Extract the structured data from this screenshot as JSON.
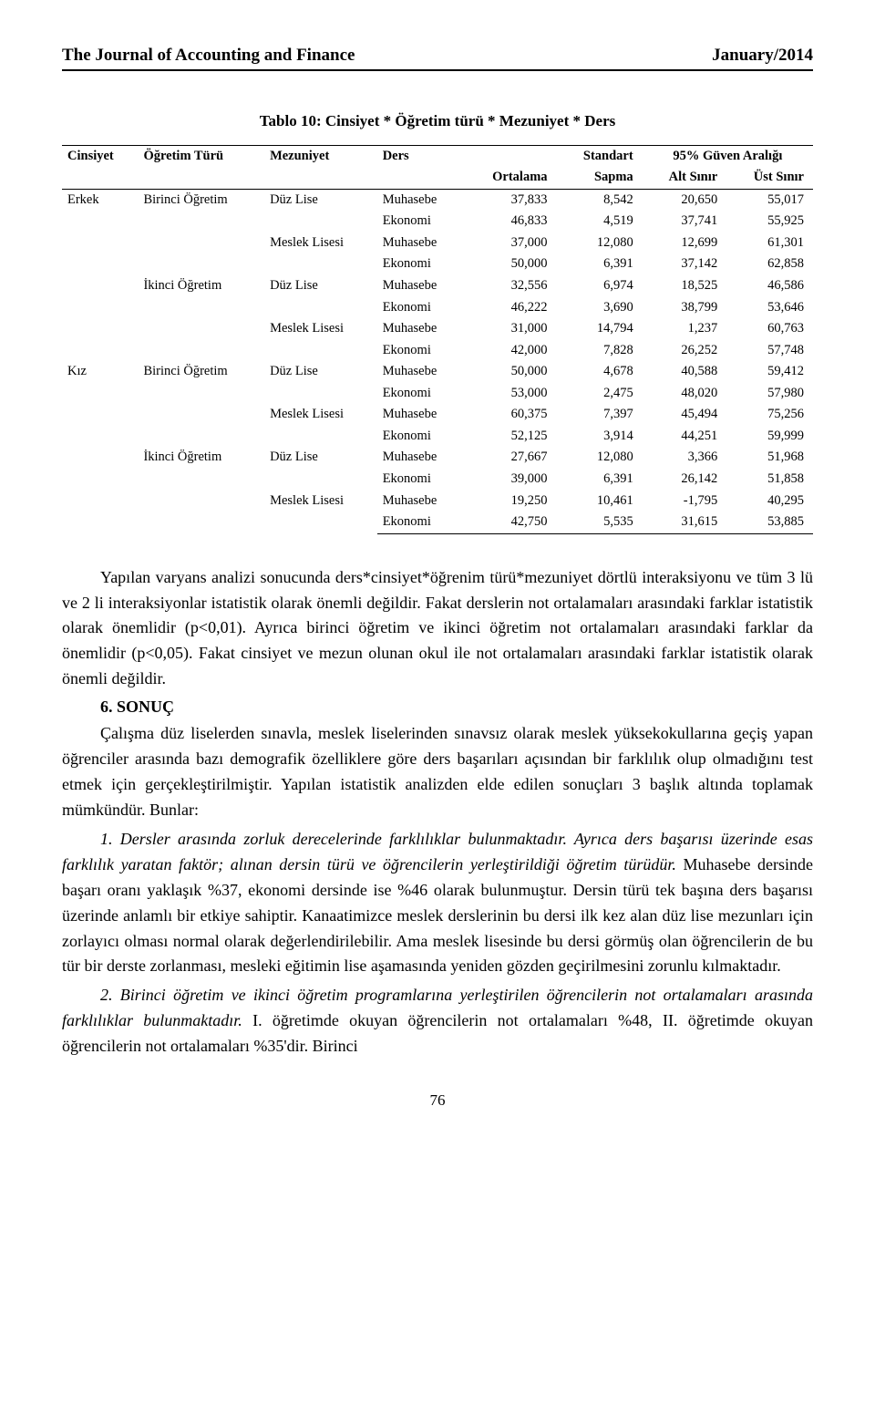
{
  "header": {
    "journal": "The Journal of Accounting and Finance",
    "issue": "January/2014"
  },
  "table": {
    "title": "Tablo 10: Cinsiyet * Öğretim türü * Mezuniyet * Ders",
    "columns": {
      "cinsiyet": "Cinsiyet",
      "ogretim_turu": "Öğretim Türü",
      "mezuniyet": "Mezuniyet",
      "ders": "Ders",
      "ortalama": "Ortalama",
      "standart_sapma_1": "Standart",
      "standart_sapma_2": "Sapma",
      "ci_group": "95% Güven Aralığı",
      "alt_sinir": "Alt Sınır",
      "ust_sinir": "Üst Sınır"
    },
    "groups": [
      {
        "cinsiyet": "Erkek",
        "ogretim": [
          {
            "label": "Birinci Öğretim",
            "mez": [
              {
                "label": "Düz Lise",
                "rows": [
                  {
                    "ders": "Muhasebe",
                    "ort": "37,833",
                    "ss": "8,542",
                    "alt": "20,650",
                    "ust": "55,017"
                  },
                  {
                    "ders": "Ekonomi",
                    "ort": "46,833",
                    "ss": "4,519",
                    "alt": "37,741",
                    "ust": "55,925"
                  }
                ]
              },
              {
                "label": "Meslek Lisesi",
                "rows": [
                  {
                    "ders": "Muhasebe",
                    "ort": "37,000",
                    "ss": "12,080",
                    "alt": "12,699",
                    "ust": "61,301"
                  },
                  {
                    "ders": "Ekonomi",
                    "ort": "50,000",
                    "ss": "6,391",
                    "alt": "37,142",
                    "ust": "62,858"
                  }
                ]
              }
            ]
          },
          {
            "label": "İkinci Öğretim",
            "mez": [
              {
                "label": "Düz Lise",
                "rows": [
                  {
                    "ders": "Muhasebe",
                    "ort": "32,556",
                    "ss": "6,974",
                    "alt": "18,525",
                    "ust": "46,586"
                  },
                  {
                    "ders": "Ekonomi",
                    "ort": "46,222",
                    "ss": "3,690",
                    "alt": "38,799",
                    "ust": "53,646"
                  }
                ]
              },
              {
                "label": "Meslek Lisesi",
                "rows": [
                  {
                    "ders": "Muhasebe",
                    "ort": "31,000",
                    "ss": "14,794",
                    "alt": "1,237",
                    "ust": "60,763"
                  },
                  {
                    "ders": "Ekonomi",
                    "ort": "42,000",
                    "ss": "7,828",
                    "alt": "26,252",
                    "ust": "57,748"
                  }
                ]
              }
            ]
          }
        ]
      },
      {
        "cinsiyet": "Kız",
        "ogretim": [
          {
            "label": "Birinci Öğretim",
            "mez": [
              {
                "label": "Düz Lise",
                "rows": [
                  {
                    "ders": "Muhasebe",
                    "ort": "50,000",
                    "ss": "4,678",
                    "alt": "40,588",
                    "ust": "59,412"
                  },
                  {
                    "ders": "Ekonomi",
                    "ort": "53,000",
                    "ss": "2,475",
                    "alt": "48,020",
                    "ust": "57,980"
                  }
                ]
              },
              {
                "label": "Meslek Lisesi",
                "rows": [
                  {
                    "ders": "Muhasebe",
                    "ort": "60,375",
                    "ss": "7,397",
                    "alt": "45,494",
                    "ust": "75,256"
                  },
                  {
                    "ders": "Ekonomi",
                    "ort": "52,125",
                    "ss": "3,914",
                    "alt": "44,251",
                    "ust": "59,999"
                  }
                ]
              }
            ]
          },
          {
            "label": "İkinci Öğretim",
            "mez": [
              {
                "label": "Düz Lise",
                "rows": [
                  {
                    "ders": "Muhasebe",
                    "ort": "27,667",
                    "ss": "12,080",
                    "alt": "3,366",
                    "ust": "51,968"
                  },
                  {
                    "ders": "Ekonomi",
                    "ort": "39,000",
                    "ss": "6,391",
                    "alt": "26,142",
                    "ust": "51,858"
                  }
                ]
              },
              {
                "label": "Meslek Lisesi",
                "rows": [
                  {
                    "ders": "Muhasebe",
                    "ort": "19,250",
                    "ss": "10,461",
                    "alt": "-1,795",
                    "ust": "40,295"
                  },
                  {
                    "ders": "Ekonomi",
                    "ort": "42,750",
                    "ss": "5,535",
                    "alt": "31,615",
                    "ust": "53,885"
                  }
                ]
              }
            ]
          }
        ]
      }
    ]
  },
  "paragraphs": {
    "p1": "Yapılan varyans analizi sonucunda ders*cinsiyet*öğrenim türü*mezuniyet dörtlü interaksiyonu ve tüm 3 lü ve 2 li interaksiyonlar istatistik olarak önemli değildir. Fakat derslerin not ortalamaları arasındaki farklar istatistik olarak önemlidir (p<0,01). Ayrıca birinci öğretim ve ikinci öğretim not ortalamaları arasındaki farklar da önemlidir (p<0,05). Fakat cinsiyet ve mezun olunan okul ile not ortalamaları arasındaki farklar istatistik olarak önemli değildir.",
    "section_head": "6. SONUÇ",
    "p2": "Çalışma düz liselerden sınavla, meslek liselerinden sınavsız olarak meslek yüksekokullarına geçiş yapan öğrenciler arasında bazı demografik özelliklere göre ders başarıları açısından bir farklılık olup olmadığını test etmek için gerçekleştirilmiştir. Yapılan istatistik analizden elde edilen sonuçları 3 başlık altında toplamak mümkündür. Bunlar:",
    "p3_italic": "1. Dersler arasında zorluk derecelerinde farklılıklar bulunmaktadır. Ayrıca ders başarısı üzerinde esas farklılık yaratan faktör; alınan dersin türü ve öğrencilerin yerleştirildiği öğretim türüdür.",
    "p3_rest": " Muhasebe dersinde başarı oranı yaklaşık %37, ekonomi dersinde ise %46 olarak bulunmuştur. Dersin türü tek başına ders başarısı üzerinde anlamlı bir etkiye sahiptir. Kanaatimizce meslek derslerinin bu dersi ilk kez alan düz lise mezunları için zorlayıcı olması normal olarak değerlendirilebilir. Ama meslek lisesinde bu dersi görmüş olan öğrencilerin de bu tür bir derste zorlanması, mesleki eğitimin lise aşamasında yeniden gözden geçirilmesini zorunlu kılmaktadır.",
    "p4_italic": "2. Birinci öğretim ve ikinci öğretim programlarına yerleştirilen öğrencilerin not ortalamaları arasında farklılıklar bulunmaktadır.",
    "p4_rest": " I. öğretimde okuyan öğrencilerin not ortalamaları %48, II. öğretimde okuyan öğrencilerin not ortalamaları %35'dir. Birinci"
  },
  "page_number": "76"
}
